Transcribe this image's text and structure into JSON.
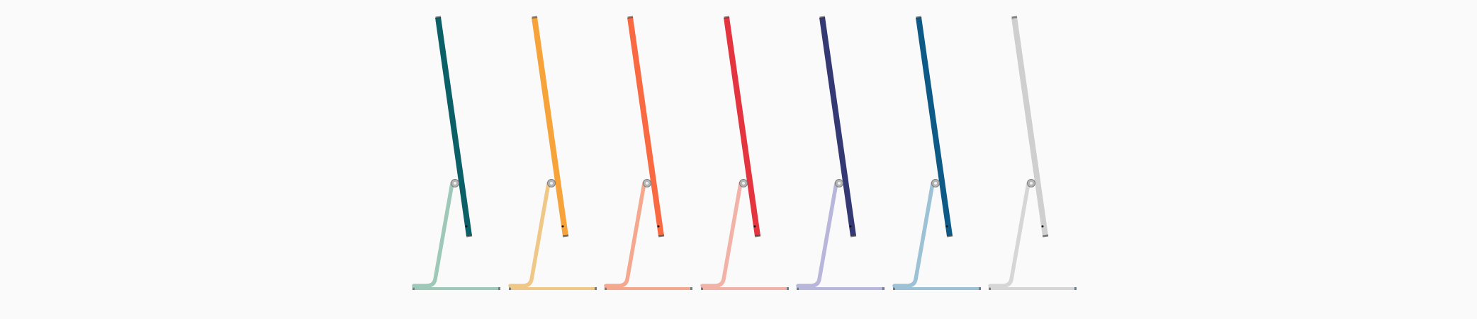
{
  "imacs": [
    {
      "display_color": "#0b6068",
      "stand_color": "#9ec9b9"
    },
    {
      "display_color": "#f6a43a",
      "stand_color": "#efc887"
    },
    {
      "display_color": "#fa6a42",
      "stand_color": "#f5a88e"
    },
    {
      "display_color": "#e4343f",
      "stand_color": "#f3b2a8"
    },
    {
      "display_color": "#343873",
      "stand_color": "#b8b6da"
    },
    {
      "display_color": "#0e5a87",
      "stand_color": "#9dc2d6"
    },
    {
      "display_color": "#cfcfcf",
      "stand_color": "#d6d6d6"
    }
  ]
}
